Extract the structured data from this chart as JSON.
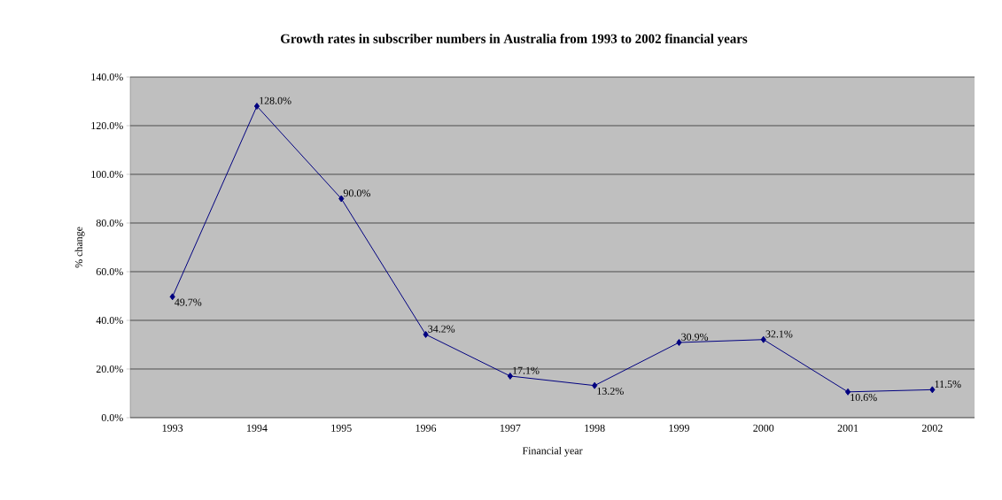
{
  "chart_data": {
    "type": "line",
    "title": "Growth rates in subscriber numbers in Australia from 1993 to 2002 financial years",
    "xlabel": "Financial year",
    "ylabel": "% change",
    "categories": [
      "1993",
      "1994",
      "1995",
      "1996",
      "1997",
      "1998",
      "1999",
      "2000",
      "2001",
      "2002"
    ],
    "series": [
      {
        "color": "#000080",
        "values": [
          49.7,
          128.0,
          90.0,
          34.2,
          17.1,
          13.2,
          30.9,
          32.1,
          10.6,
          11.5
        ],
        "value_labels": [
          "49.7%",
          "128.0%",
          "90.0%",
          "34.2%",
          "17.1%",
          "13.2%",
          "30.9%",
          "32.1%",
          "10.6%",
          "11.5%"
        ]
      }
    ],
    "ylim": [
      0,
      140
    ],
    "yticks": [
      {
        "value": 0,
        "label": "0.0%"
      },
      {
        "value": 20,
        "label": "20.0%"
      },
      {
        "value": 40,
        "label": "40.0%"
      },
      {
        "value": 60,
        "label": "60.0%"
      },
      {
        "value": 80,
        "label": "80.0%"
      },
      {
        "value": 100,
        "label": "100.0%"
      },
      {
        "value": 120,
        "label": "120.0%"
      },
      {
        "value": 140,
        "label": "140.0%"
      }
    ],
    "grid": "y",
    "marker": "diamond",
    "line_style": "solid"
  }
}
